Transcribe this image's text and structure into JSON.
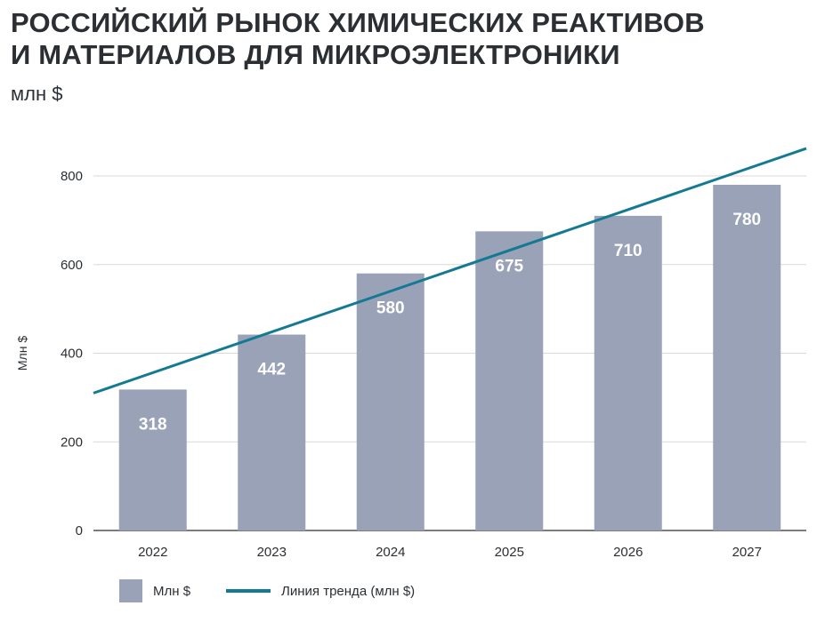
{
  "title_line1": "РОССИЙСКИЙ РЫНОК ХИМИЧЕСКИХ РЕАКТИВОВ",
  "title_line2": "И МАТЕРИАЛОВ ДЛЯ МИКРОЭЛЕКТРОНИКИ",
  "subtitle": "млн $",
  "colors": {
    "bar": "#9aa2b8",
    "trend": "#137a92",
    "grid": "#d9d9d9"
  },
  "chart_data": {
    "type": "bar",
    "title": "РОССИЙСКИЙ РЫНОК ХИМИЧЕСКИХ РЕАКТИВОВ И МАТЕРИАЛОВ ДЛЯ МИКРОЭЛЕКТРОНИКИ",
    "ylabel": "Млн $",
    "xlabel": "",
    "categories": [
      "2022",
      "2023",
      "2024",
      "2025",
      "2026",
      "2027"
    ],
    "series": [
      {
        "name": "Млн $",
        "values": [
          318,
          442,
          580,
          675,
          710,
          780
        ]
      }
    ],
    "trendline": {
      "name": "Линия тренда (млн $)",
      "start_value": 310,
      "end_value": 862
    },
    "yticks": [
      0,
      200,
      400,
      600,
      800
    ],
    "ylim": [
      0,
      800
    ],
    "grid": true,
    "legend_position": "bottom-left"
  }
}
